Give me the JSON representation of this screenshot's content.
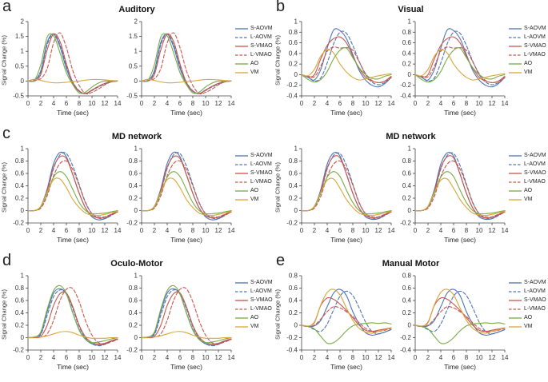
{
  "figure": {
    "ylabel": "Signal Change (%)",
    "xlabel": "Time (sec)",
    "background": "#ffffff",
    "axis_color": "#444444"
  },
  "palette": [
    {
      "name": "S-AOVM",
      "color": "#4c74b4",
      "dash": false
    },
    {
      "name": "L-AOVM",
      "color": "#4c74b4",
      "dash": true
    },
    {
      "name": "S-VMAO",
      "color": "#c9554a",
      "dash": false
    },
    {
      "name": "L-VMAO",
      "color": "#c9554a",
      "dash": true
    },
    {
      "name": "AO",
      "color": "#77ab43",
      "dash": false
    },
    {
      "name": "VM",
      "color": "#d8a63a",
      "dash": false
    }
  ],
  "chart_data": [
    {
      "type": "line",
      "letter": "a",
      "title": "Auditory",
      "xlabel": "Time (sec)",
      "ylabel": "Signal Change (%)",
      "xlim": [
        0,
        14
      ],
      "xtick_step": 2,
      "ylim": [
        -0.5,
        2
      ],
      "ytick_step": 0.5,
      "subplots": 2,
      "legend_position": "right",
      "grid": false,
      "x": [
        0,
        1,
        2,
        3,
        4,
        5,
        6,
        7,
        8,
        9,
        10,
        11,
        12,
        13,
        14
      ],
      "series": {
        "S-AOVM": [
          0,
          0.02,
          0.35,
          1.3,
          1.58,
          1.15,
          0.42,
          -0.08,
          -0.35,
          -0.42,
          -0.3,
          -0.18,
          -0.08,
          -0.02,
          0
        ],
        "L-AOVM": [
          0,
          0.02,
          0.3,
          1.22,
          1.59,
          1.22,
          0.5,
          -0.03,
          -0.33,
          -0.43,
          -0.32,
          -0.2,
          -0.1,
          -0.03,
          0
        ],
        "S-VMAO": [
          0,
          0.0,
          0.22,
          1.05,
          1.58,
          1.33,
          0.58,
          -0.05,
          -0.33,
          -0.42,
          -0.3,
          -0.18,
          -0.08,
          -0.02,
          0
        ],
        "L-VMAO": [
          0,
          0.05,
          0.08,
          0.42,
          1.28,
          1.62,
          1.12,
          0.35,
          -0.15,
          -0.42,
          -0.38,
          -0.27,
          -0.13,
          -0.03,
          0
        ],
        "AO": [
          0,
          0.03,
          0.55,
          1.48,
          1.52,
          0.95,
          0.28,
          -0.12,
          -0.4,
          -0.37,
          -0.2,
          -0.07,
          0.0,
          -0.01,
          0
        ],
        "VM": [
          0,
          0.06,
          0.02,
          -0.03,
          -0.06,
          -0.06,
          -0.04,
          -0.02,
          0.0,
          0.03,
          0.05,
          0.05,
          0.04,
          0.02,
          0.01
        ]
      }
    },
    {
      "type": "line",
      "letter": "b",
      "title": "Visual",
      "xlabel": "Time (sec)",
      "ylabel": "Signal Change (%)",
      "xlim": [
        0,
        14
      ],
      "xtick_step": 2,
      "ylim": [
        -0.4,
        1
      ],
      "ytick_step": 0.2,
      "subplots": 2,
      "legend_position": "right",
      "grid": false,
      "x": [
        0,
        1,
        2,
        3,
        4,
        5,
        6,
        7,
        8,
        9,
        10,
        11,
        12,
        13,
        14
      ],
      "series": {
        "S-AOVM": [
          0,
          -0.05,
          -0.1,
          0.1,
          0.5,
          0.84,
          0.83,
          0.68,
          0.38,
          0.08,
          -0.1,
          -0.2,
          -0.23,
          -0.17,
          -0.05
        ],
        "L-AOVM": [
          0,
          -0.04,
          -0.12,
          -0.06,
          0.22,
          0.58,
          0.8,
          0.78,
          0.55,
          0.25,
          0.0,
          -0.14,
          -0.19,
          -0.15,
          -0.06
        ],
        "S-VMAO": [
          0,
          -0.04,
          0.0,
          0.3,
          0.55,
          0.68,
          0.71,
          0.6,
          0.35,
          0.12,
          -0.05,
          -0.12,
          -0.15,
          -0.12,
          -0.03
        ],
        "L-VMAO": [
          0,
          -0.03,
          -0.04,
          0.16,
          0.44,
          0.52,
          0.5,
          0.51,
          0.46,
          0.24,
          0.02,
          -0.11,
          -0.15,
          -0.13,
          -0.05
        ],
        "AO": [
          0,
          -0.09,
          -0.14,
          -0.09,
          0.06,
          0.3,
          0.46,
          0.5,
          0.32,
          0.13,
          0.0,
          -0.07,
          -0.08,
          -0.03,
          0.0
        ],
        "VM": [
          0,
          -0.02,
          0.1,
          0.35,
          0.47,
          0.41,
          0.2,
          0.05,
          -0.05,
          -0.1,
          -0.08,
          -0.05,
          -0.02,
          0.0,
          0.02
        ]
      }
    },
    {
      "type": "line",
      "letter": "c",
      "title": "MD network",
      "xlabel": "Time (sec)",
      "ylabel": "Signal Change (%)",
      "xlim": [
        0,
        14
      ],
      "xtick_step": 2,
      "ylim": [
        -0.2,
        1
      ],
      "ytick_step": 0.2,
      "subplots": 2,
      "legend_position": "right",
      "grid": false,
      "x": [
        0,
        1,
        2,
        3,
        4,
        5,
        6,
        7,
        8,
        9,
        10,
        11,
        12,
        13,
        14
      ],
      "series": {
        "S-AOVM": [
          0,
          0,
          0.07,
          0.35,
          0.76,
          0.94,
          0.87,
          0.58,
          0.28,
          0.04,
          -0.1,
          -0.15,
          -0.13,
          -0.07,
          0
        ],
        "L-AOVM": [
          0,
          0,
          0.05,
          0.3,
          0.68,
          0.9,
          0.92,
          0.72,
          0.42,
          0.13,
          -0.05,
          -0.12,
          -0.13,
          -0.08,
          -0.02
        ],
        "S-VMAO": [
          0,
          0,
          0.06,
          0.32,
          0.7,
          0.87,
          0.84,
          0.58,
          0.28,
          0.04,
          -0.08,
          -0.12,
          -0.11,
          -0.07,
          -0.02
        ],
        "L-VMAO": [
          0,
          0,
          0.04,
          0.24,
          0.56,
          0.76,
          0.8,
          0.66,
          0.4,
          0.12,
          -0.05,
          -0.1,
          -0.1,
          -0.06,
          -0.02
        ],
        "AO": [
          0,
          0,
          0.06,
          0.28,
          0.54,
          0.63,
          0.55,
          0.34,
          0.13,
          0.0,
          -0.05,
          -0.05,
          -0.04,
          -0.02,
          0
        ],
        "VM": [
          0,
          0,
          0.07,
          0.3,
          0.5,
          0.51,
          0.37,
          0.18,
          0.05,
          -0.04,
          -0.07,
          -0.08,
          -0.06,
          -0.04,
          -0.01
        ]
      }
    },
    {
      "type": "line",
      "letter": "",
      "title": "MD network",
      "xlabel": "Time (sec)",
      "ylabel": "Signal Change (%)",
      "xlim": [
        0,
        14
      ],
      "xtick_step": 2,
      "ylim": [
        -0.2,
        1
      ],
      "ytick_step": 0.2,
      "subplots": 2,
      "legend_position": "right",
      "grid": false,
      "x": [
        0,
        1,
        2,
        3,
        4,
        5,
        6,
        7,
        8,
        9,
        10,
        11,
        12,
        13,
        14
      ],
      "series": {
        "S-AOVM": [
          0,
          0,
          0.07,
          0.34,
          0.75,
          0.93,
          0.88,
          0.59,
          0.28,
          0.04,
          -0.1,
          -0.14,
          -0.13,
          -0.07,
          0
        ],
        "L-AOVM": [
          0,
          0,
          0.05,
          0.29,
          0.67,
          0.89,
          0.92,
          0.73,
          0.43,
          0.13,
          -0.05,
          -0.12,
          -0.13,
          -0.08,
          -0.02
        ],
        "S-VMAO": [
          0,
          0,
          0.06,
          0.31,
          0.69,
          0.87,
          0.85,
          0.59,
          0.28,
          0.04,
          -0.08,
          -0.12,
          -0.11,
          -0.07,
          -0.02
        ],
        "L-VMAO": [
          0,
          0,
          0.04,
          0.23,
          0.55,
          0.75,
          0.8,
          0.67,
          0.41,
          0.12,
          -0.05,
          -0.1,
          -0.1,
          -0.06,
          -0.02
        ],
        "AO": [
          0,
          0,
          0.06,
          0.28,
          0.54,
          0.63,
          0.55,
          0.33,
          0.13,
          0.0,
          -0.05,
          -0.05,
          -0.04,
          -0.02,
          0
        ],
        "VM": [
          0,
          0,
          0.07,
          0.3,
          0.49,
          0.51,
          0.36,
          0.18,
          0.05,
          -0.04,
          -0.07,
          -0.08,
          -0.06,
          -0.04,
          -0.01
        ]
      }
    },
    {
      "type": "line",
      "letter": "d",
      "title": "Oculo-Motor",
      "xlabel": "Time (sec)",
      "ylabel": "Signal Change (%)",
      "xlim": [
        0,
        14
      ],
      "xtick_step": 2,
      "ylim": [
        -0.2,
        1
      ],
      "ytick_step": 0.2,
      "subplots": 2,
      "legend_position": "right",
      "grid": false,
      "x": [
        0,
        1,
        2,
        3,
        4,
        5,
        6,
        7,
        8,
        9,
        10,
        11,
        12,
        13,
        14
      ],
      "series": {
        "S-AOVM": [
          0,
          0.01,
          0.07,
          0.42,
          0.72,
          0.79,
          0.7,
          0.4,
          0.13,
          -0.03,
          -0.1,
          -0.12,
          -0.1,
          -0.05,
          -0.02
        ],
        "L-AOVM": [
          0,
          0.01,
          0.05,
          0.36,
          0.66,
          0.77,
          0.72,
          0.47,
          0.18,
          -0.01,
          -0.1,
          -0.13,
          -0.11,
          -0.06,
          -0.03
        ],
        "S-VMAO": [
          0,
          0.0,
          0.02,
          0.2,
          0.52,
          0.71,
          0.72,
          0.5,
          0.2,
          0.01,
          -0.08,
          -0.1,
          -0.09,
          -0.05,
          -0.02
        ],
        "L-VMAO": [
          0,
          0.0,
          0.01,
          0.06,
          0.28,
          0.6,
          0.78,
          0.79,
          0.58,
          0.27,
          0.04,
          -0.08,
          -0.1,
          -0.07,
          -0.03
        ],
        "AO": [
          0,
          0.01,
          0.09,
          0.46,
          0.76,
          0.84,
          0.71,
          0.4,
          0.12,
          -0.03,
          -0.08,
          -0.07,
          -0.05,
          -0.02,
          0
        ],
        "VM": [
          0,
          0.01,
          0.01,
          0.03,
          0.06,
          0.09,
          0.1,
          0.08,
          0.04,
          0.01,
          -0.01,
          -0.01,
          -0.01,
          0,
          0
        ]
      }
    },
    {
      "type": "line",
      "letter": "e",
      "title": "Manual Motor",
      "xlabel": "Time (sec)",
      "ylabel": "Signal Change (%)",
      "xlim": [
        0,
        14
      ],
      "xtick_step": 2,
      "ylim": [
        -0.4,
        0.8
      ],
      "ytick_step": 0.2,
      "subplots": 2,
      "legend_position": "right",
      "grid": false,
      "x": [
        0,
        1,
        2,
        3,
        4,
        5,
        6,
        7,
        8,
        9,
        10,
        11,
        12,
        13,
        14
      ],
      "series": {
        "S-AOVM": [
          0,
          -0.02,
          -0.01,
          0.08,
          0.3,
          0.52,
          0.58,
          0.48,
          0.22,
          0.02,
          -0.12,
          -0.16,
          -0.14,
          -0.11,
          -0.07
        ],
        "L-AOVM": [
          0,
          -0.02,
          -0.07,
          -0.1,
          0.02,
          0.25,
          0.47,
          0.55,
          0.48,
          0.28,
          0.05,
          -0.1,
          -0.14,
          -0.11,
          -0.07
        ],
        "S-VMAO": [
          0,
          -0.02,
          0.05,
          0.32,
          0.44,
          0.42,
          0.34,
          0.24,
          0.12,
          0.0,
          -0.08,
          -0.1,
          -0.08,
          -0.06,
          -0.04
        ],
        "L-VMAO": [
          0,
          -0.02,
          0.0,
          0.1,
          0.22,
          0.3,
          0.28,
          0.22,
          0.14,
          0.04,
          -0.05,
          -0.1,
          -0.1,
          -0.08,
          -0.05
        ],
        "AO": [
          0,
          -0.02,
          -0.06,
          -0.18,
          -0.29,
          -0.28,
          -0.2,
          -0.09,
          -0.01,
          0.02,
          0.03,
          0.04,
          0.03,
          0.04,
          0.02
        ],
        "VM": [
          0,
          -0.01,
          0.04,
          0.33,
          0.53,
          0.58,
          0.49,
          0.28,
          0.08,
          -0.05,
          -0.11,
          -0.13,
          -0.1,
          -0.07,
          -0.04
        ]
      }
    }
  ]
}
